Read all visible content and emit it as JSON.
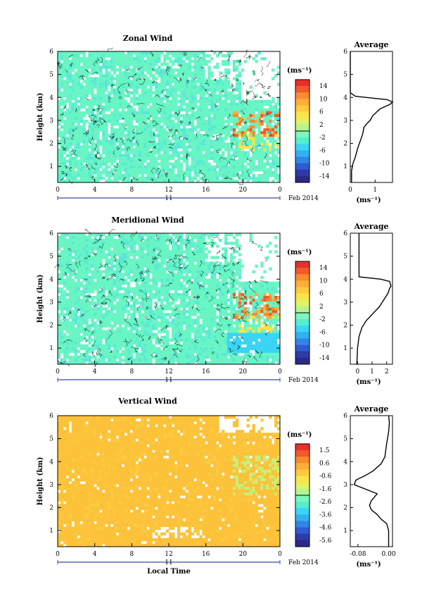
{
  "date_label": "Feb 2014",
  "day_label": "11",
  "x_axis_label": "Local Time",
  "y_axis_label": "Height (km)",
  "unit_label": "(ms⁻¹)",
  "avg_title": "Average",
  "chart_data": [
    {
      "type": "heatmap",
      "title": "Zonal Wind",
      "ylabel": "Height (km)",
      "xlabel": "",
      "x_ticks": [
        "0",
        "4",
        "8",
        "12",
        "16",
        "20",
        "0"
      ],
      "y_ticks": [
        "1",
        "2",
        "3",
        "4",
        "5",
        "6"
      ],
      "xlim": [
        0,
        24
      ],
      "ylim": [
        0.3,
        6
      ],
      "colorbar_unit": "(ms⁻¹)",
      "colorbar_ticks": [
        "14",
        "10",
        "6",
        "2",
        "-2",
        "-6",
        "-10",
        "-14"
      ],
      "colorbar_range": [
        -16,
        16
      ],
      "grid": false,
      "average_profile": {
        "title": "Average",
        "xlabel": "(ms⁻¹)",
        "x_ticks": [
          "0",
          "1"
        ],
        "xlim": [
          0,
          1.7
        ],
        "y_ticks": [
          "1",
          "2",
          "3",
          "4",
          "5",
          "6"
        ],
        "ylim": [
          0.3,
          6
        ],
        "x": [
          0.05,
          0.05,
          0.1,
          0.2,
          0.3,
          0.4,
          0.5,
          0.55,
          0.7,
          0.8,
          0.9,
          1.0,
          1.1,
          1.2,
          1.3,
          1.4,
          1.6,
          1.7,
          1.5,
          0.2,
          0.0,
          0.0,
          0.0
        ],
        "y": [
          0.3,
          0.8,
          1.1,
          1.4,
          1.8,
          2.1,
          2.4,
          2.7,
          2.9,
          3.0,
          3.2,
          3.3,
          3.4,
          3.5,
          3.55,
          3.6,
          3.7,
          3.8,
          3.9,
          4.05,
          4.2,
          5.0,
          6.0
        ]
      }
    },
    {
      "type": "heatmap",
      "title": "Meridional Wind",
      "ylabel": "Height (km)",
      "xlabel": "",
      "x_ticks": [
        "0",
        "4",
        "8",
        "12",
        "16",
        "20",
        "0"
      ],
      "y_ticks": [
        "1",
        "2",
        "3",
        "4",
        "5",
        "6"
      ],
      "xlim": [
        0,
        24
      ],
      "ylim": [
        0.3,
        6
      ],
      "colorbar_unit": "(ms⁻¹)",
      "colorbar_ticks": [
        "14",
        "10",
        "6",
        "2",
        "-2",
        "-6",
        "-10",
        "-14"
      ],
      "colorbar_range": [
        -16,
        16
      ],
      "grid": false,
      "average_profile": {
        "title": "Average",
        "xlabel": "(ms⁻¹)",
        "x_ticks": [
          "0",
          "1",
          "2"
        ],
        "xlim": [
          -0.5,
          2.4
        ],
        "y_ticks": [
          "1",
          "2",
          "3",
          "4",
          "5",
          "6"
        ],
        "ylim": [
          0.3,
          6
        ],
        "x": [
          -0.05,
          0.0,
          0.1,
          0.3,
          0.6,
          0.9,
          1.2,
          1.5,
          1.7,
          1.9,
          2.1,
          2.2,
          2.3,
          2.2,
          1.6,
          0.1,
          0.1,
          0.1
        ],
        "y": [
          0.3,
          1.0,
          1.5,
          1.9,
          2.2,
          2.4,
          2.6,
          2.8,
          3.0,
          3.2,
          3.4,
          3.6,
          3.7,
          3.9,
          4.0,
          4.1,
          5.0,
          6.0
        ]
      }
    },
    {
      "type": "heatmap",
      "title": "Vertical Wind",
      "ylabel": "Height (km)",
      "xlabel": "Local Time",
      "x_ticks": [
        "0",
        "4",
        "8",
        "12",
        "16",
        "20",
        "0"
      ],
      "y_ticks": [
        "1",
        "2",
        "3",
        "4",
        "5",
        "6"
      ],
      "xlim": [
        0,
        24
      ],
      "ylim": [
        0.3,
        6
      ],
      "colorbar_unit": "(ms⁻¹)",
      "colorbar_ticks": [
        "1.5",
        "0.6",
        "-0.6",
        "-1.6",
        "-2.6",
        "-3.6",
        "-4.6",
        "-5.6"
      ],
      "colorbar_range": [
        -6.1,
        2.0
      ],
      "grid": false,
      "average_profile": {
        "title": "Average",
        "xlabel": "(ms⁻¹)",
        "x_ticks": [
          "-0.08",
          "0.00"
        ],
        "xlim": [
          -0.1,
          0.01
        ],
        "y_ticks": [
          "1",
          "2",
          "3",
          "4",
          "5",
          "6"
        ],
        "ylim": [
          0.3,
          6
        ],
        "x": [
          0.0,
          0.0,
          -0.005,
          -0.02,
          -0.03,
          -0.045,
          -0.05,
          -0.045,
          -0.03,
          -0.06,
          -0.09,
          -0.085,
          -0.06,
          -0.04,
          -0.02,
          -0.01,
          -0.005,
          0.0,
          0.002,
          0.0
        ],
        "y": [
          0.3,
          1.0,
          1.3,
          1.5,
          1.7,
          1.9,
          2.1,
          2.3,
          2.6,
          2.8,
          3.0,
          3.2,
          3.4,
          3.6,
          3.9,
          4.2,
          4.8,
          5.3,
          5.7,
          6.0
        ]
      }
    }
  ]
}
